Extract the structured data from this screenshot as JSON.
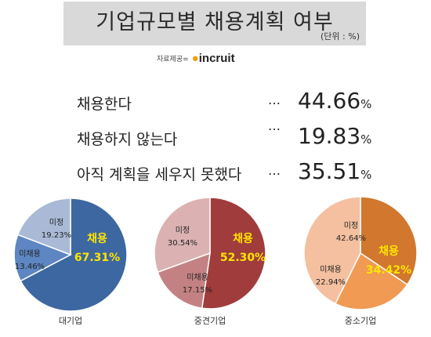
{
  "title": "기업규모별 채용계획 여부",
  "unit": "(단위 : %)",
  "source_label": "자료제공=",
  "source_logo": "incruit",
  "summary": [
    {
      "label": "채용한다",
      "dots": "…",
      "value": "44.66",
      "pct": "%"
    },
    {
      "label": "채용하지 않는다",
      "dots": "…",
      "value": "19.83",
      "pct": "%"
    },
    {
      "label": "아직 계획을 세우지 못했다",
      "dots": "…",
      "value": "35.51",
      "pct": "%"
    }
  ],
  "chart_data": [
    {
      "type": "pie",
      "title": "대기업",
      "slices": [
        {
          "label": "채용",
          "value": 67.31,
          "value_text": "67.31%",
          "color": "#3d67a0"
        },
        {
          "label": "미채용",
          "value": 13.46,
          "value_text": "13.46%",
          "color": "#5d86c2"
        },
        {
          "label": "미정",
          "value": 19.23,
          "value_text": "19.23%",
          "color": "#a9b9d6"
        }
      ]
    },
    {
      "type": "pie",
      "title": "중견기업",
      "slices": [
        {
          "label": "채용",
          "value": 52.3,
          "value_text": "52.30%",
          "color": "#a03c3c"
        },
        {
          "label": "미채용",
          "value": 17.15,
          "value_text": "17.15%",
          "color": "#c48183"
        },
        {
          "label": "미정",
          "value": 30.54,
          "value_text": "30.54%",
          "color": "#dbb1b2"
        }
      ]
    },
    {
      "type": "pie",
      "title": "중소기업",
      "slices": [
        {
          "label": "채용",
          "value": 34.42,
          "value_text": "34.42%",
          "color": "#d1772e"
        },
        {
          "label": "미채용",
          "value": 22.94,
          "value_text": "22.94%",
          "color": "#f09a54"
        },
        {
          "label": "미정",
          "value": 42.64,
          "value_text": "42.64%",
          "color": "#f4c0a0"
        }
      ]
    }
  ]
}
